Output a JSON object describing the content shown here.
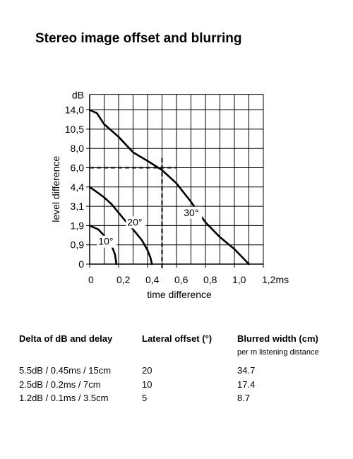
{
  "title": "Stereo image offset and blurring",
  "chart_data": {
    "type": "line",
    "xlabel": "time difference",
    "ylabel": "level difference",
    "y_unit_label": "dB",
    "x_unit_label": "ms",
    "x_ticks": [
      0,
      0.2,
      0.4,
      0.6,
      0.8,
      1.0,
      1.2
    ],
    "x_tick_labels": [
      "0",
      "0,2",
      "0,4",
      "0,6",
      "0,8",
      "1,0",
      "1,2ms"
    ],
    "y_ticks": [
      0,
      0.9,
      1.9,
      3.1,
      4.4,
      6.0,
      8.0,
      10.5,
      14.0
    ],
    "y_tick_labels": [
      "0",
      "0,9",
      "1,9",
      "3,1",
      "4,4",
      "6,0",
      "8,0",
      "10,5",
      "14,0"
    ],
    "y_top_label": "dB",
    "grid": true,
    "series": [
      {
        "name": "10°",
        "points": [
          [
            0,
            1.9
          ],
          [
            0.06,
            1.7
          ],
          [
            0.11,
            1.3
          ],
          [
            0.15,
            0.9
          ],
          [
            0.175,
            0.45
          ],
          [
            0.185,
            0
          ]
        ]
      },
      {
        "name": "20°",
        "points": [
          [
            0,
            4.4
          ],
          [
            0.05,
            4.05
          ],
          [
            0.1,
            3.7
          ],
          [
            0.15,
            3.25
          ],
          [
            0.2,
            2.7
          ],
          [
            0.25,
            2.15
          ],
          [
            0.3,
            1.7
          ],
          [
            0.36,
            1.15
          ],
          [
            0.4,
            0.65
          ],
          [
            0.42,
            0.3
          ],
          [
            0.43,
            0
          ]
        ]
      },
      {
        "name": "30°",
        "points": [
          [
            0,
            14.0
          ],
          [
            0.05,
            13.4
          ],
          [
            0.1,
            11.4
          ],
          [
            0.2,
            9.5
          ],
          [
            0.3,
            7.6
          ],
          [
            0.4,
            6.7
          ],
          [
            0.5,
            5.8
          ],
          [
            0.6,
            4.7
          ],
          [
            0.7,
            3.4
          ],
          [
            0.8,
            2.1
          ],
          [
            0.9,
            1.3
          ],
          [
            1.0,
            0.7
          ],
          [
            1.05,
            0.35
          ],
          [
            1.1,
            0
          ]
        ]
      }
    ],
    "reference": {
      "x": 0.5,
      "y": 6.0
    },
    "curve_labels": [
      "10°",
      "20°",
      "30°"
    ]
  },
  "table": {
    "headers": [
      "Delta of dB and delay",
      "Lateral offset (°)",
      "Blurred width (cm)"
    ],
    "subheader": "per m listening distance",
    "rows": [
      [
        "5.5dB / 0.45ms / 15cm",
        "20",
        "34.7"
      ],
      [
        "2.5dB / 0.2ms / 7cm",
        "10",
        "17.4"
      ],
      [
        "1.2dB / 0.1ms / 3.5cm",
        "5",
        "8.7"
      ]
    ]
  }
}
